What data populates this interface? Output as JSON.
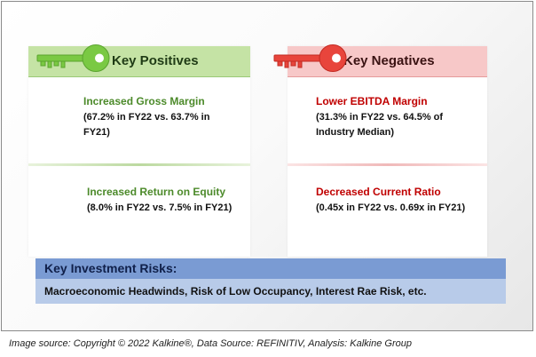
{
  "positives": {
    "header": "Key Positives",
    "items": [
      {
        "title": "Increased Gross Margin",
        "detail_line1": "(67.2% in FY22 vs. 63.7% in",
        "detail_line2": "FY21)"
      },
      {
        "title": "Increased Return on Equity",
        "detail_line1": "(8.0% in FY22 vs. 7.5% in FY21)"
      }
    ],
    "key_color": "#7ac943"
  },
  "negatives": {
    "header": "Key Negatives",
    "items": [
      {
        "title": "Lower EBITDA Margin",
        "detail_line1": "(31.3% in FY22 vs. 64.5% of",
        "detail_line2": "Industry Median)"
      },
      {
        "title": "Decreased Current Ratio",
        "detail_line1": "(0.45x in FY22 vs. 0.69x in FY21)"
      }
    ],
    "key_color": "#e8453c"
  },
  "risks": {
    "title": "Key Investment Risks:",
    "text": "Macroeconomic Headwinds, Risk of Low Occupancy, Interest Rae Risk, etc."
  },
  "caption": "Image source: Copyright © 2022 Kalkine®, Data Source: REFINITIV, Analysis: Kalkine Group",
  "icons": {
    "positive_key": "green-key-icon",
    "negative_key": "red-key-icon"
  }
}
